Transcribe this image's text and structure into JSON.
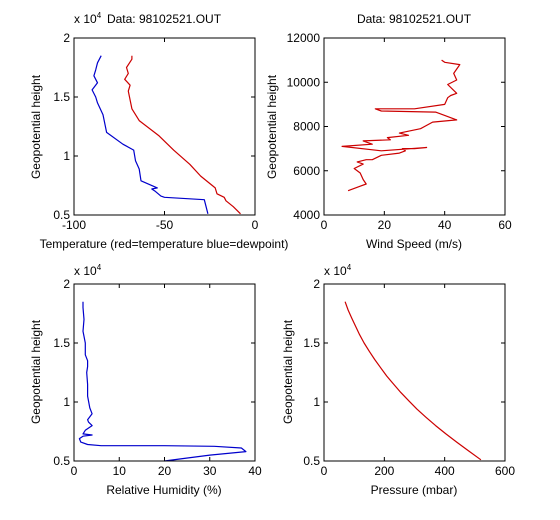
{
  "chart_data": [
    {
      "type": "line",
      "title": "Data: 98102521.OUT",
      "xlabel": "Temperature (red=temperature blue=dewpoint)",
      "ylabel": "Geopotential height",
      "xlim": [
        -100,
        0
      ],
      "ylim": [
        5000,
        20000
      ],
      "xticks": [
        -100,
        -50,
        0
      ],
      "yticks": [
        5000,
        10000,
        15000,
        20000
      ],
      "ytick_labels": [
        "0.5",
        "1",
        "1.5",
        "2"
      ],
      "y_multiplier": "x 10",
      "y_multiplier_exp": "4",
      "grid": false,
      "series": [
        {
          "color": "#cc0000",
          "x": [
            -8,
            -12,
            -16,
            -17,
            -21,
            -22,
            -30,
            -36,
            -45,
            -53,
            -64,
            -68,
            -70,
            -69,
            -72,
            -70,
            -71,
            -68,
            -68
          ],
          "y": [
            5100,
            5700,
            6200,
            6500,
            6800,
            7300,
            8300,
            9300,
            10500,
            11700,
            13000,
            14000,
            15500,
            16000,
            16500,
            17000,
            17500,
            18200,
            18500
          ]
        },
        {
          "color": "#0000cc",
          "x": [
            -26,
            -28,
            -50,
            -52,
            -55,
            -57,
            -54,
            -63,
            -64,
            -66,
            -67,
            -73,
            -82,
            -84,
            -87,
            -88,
            -90,
            -87,
            -89,
            -88,
            -87,
            -85
          ],
          "y": [
            5100,
            6300,
            6500,
            6600,
            7000,
            7200,
            7300,
            7900,
            8900,
            9600,
            10500,
            11000,
            12000,
            13500,
            14500,
            15000,
            15600,
            16200,
            16800,
            17300,
            17900,
            18500
          ]
        }
      ]
    },
    {
      "type": "line",
      "title": "Data: 98102521.OUT",
      "xlabel": "Wind Speed (m/s)",
      "ylabel": "Geopotential height",
      "xlim": [
        0,
        60
      ],
      "ylim": [
        4000,
        12000
      ],
      "xticks": [
        0,
        20,
        40,
        60
      ],
      "yticks": [
        4000,
        6000,
        8000,
        10000,
        12000
      ],
      "ytick_labels": [
        "4000",
        "6000",
        "8000",
        "10000",
        "12000"
      ],
      "grid": false,
      "series": [
        {
          "color": "#cc0000",
          "x": [
            8,
            12,
            14,
            13,
            12,
            10,
            13,
            11,
            14,
            16,
            19,
            25,
            27,
            26,
            30,
            34,
            19,
            6,
            16,
            13,
            22,
            21,
            28,
            25,
            32,
            36,
            44,
            40,
            37,
            19,
            17,
            30,
            40,
            41,
            42,
            44,
            41,
            44,
            43,
            45,
            40,
            39
          ],
          "y": [
            5100,
            5300,
            5400,
            5600,
            5900,
            6100,
            6300,
            6400,
            6500,
            6500,
            6700,
            6800,
            6900,
            7000,
            7000,
            7050,
            6900,
            7100,
            7200,
            7350,
            7400,
            7500,
            7600,
            7700,
            7900,
            8200,
            8300,
            8500,
            8650,
            8700,
            8800,
            8800,
            9000,
            9300,
            9400,
            9500,
            9900,
            10100,
            10400,
            10800,
            10900,
            11000
          ]
        }
      ]
    },
    {
      "type": "line",
      "title": "",
      "xlabel": "Relative Humidity (%)",
      "ylabel": "Geopotential height",
      "xlim": [
        0,
        40
      ],
      "ylim": [
        5000,
        20000
      ],
      "xticks": [
        0,
        10,
        20,
        30,
        40
      ],
      "yticks": [
        5000,
        10000,
        15000,
        20000
      ],
      "ytick_labels": [
        "0.5",
        "1",
        "1.5",
        "2"
      ],
      "y_multiplier": "x 10",
      "y_multiplier_exp": "4",
      "grid": false,
      "series": [
        {
          "color": "#0000cc",
          "x": [
            20,
            24,
            30,
            38,
            37,
            31,
            20,
            10,
            6,
            3,
            1.5,
            1.2,
            2,
            4,
            2,
            2.5,
            4,
            3.2,
            3,
            4,
            3.5,
            3,
            3,
            2.8,
            3,
            3,
            2.5,
            2.5,
            2,
            2.2,
            2,
            2
          ],
          "y": [
            5000,
            5200,
            5500,
            5800,
            6100,
            6250,
            6300,
            6300,
            6300,
            6400,
            6600,
            6900,
            7100,
            7200,
            7300,
            7600,
            8000,
            8300,
            8500,
            9000,
            9500,
            10500,
            11500,
            12500,
            13000,
            13500,
            14000,
            15000,
            16000,
            17000,
            18000,
            18500
          ]
        }
      ]
    },
    {
      "type": "line",
      "title": "",
      "xlabel": "Pressure (mbar)",
      "ylabel": "Geopotential height",
      "xlim": [
        0,
        600
      ],
      "ylim": [
        5000,
        20000
      ],
      "xticks": [
        0,
        200,
        400,
        600
      ],
      "yticks": [
        5000,
        10000,
        15000,
        20000
      ],
      "ytick_labels": [
        "0.5",
        "1",
        "1.5",
        "2"
      ],
      "y_multiplier": "x 10",
      "y_multiplier_exp": "4",
      "grid": false,
      "series": [
        {
          "color": "#cc0000",
          "x": [
            70,
            80,
            92,
            105,
            118,
            133,
            150,
            168,
            188,
            208,
            231,
            255,
            281,
            308,
            338,
            370,
            404,
            440,
            477,
            520
          ],
          "y": [
            18500,
            17800,
            17100,
            16400,
            15700,
            15000,
            14300,
            13600,
            12900,
            12200,
            11500,
            10800,
            10100,
            9400,
            8700,
            8000,
            7300,
            6600,
            5900,
            5100
          ]
        }
      ]
    }
  ]
}
